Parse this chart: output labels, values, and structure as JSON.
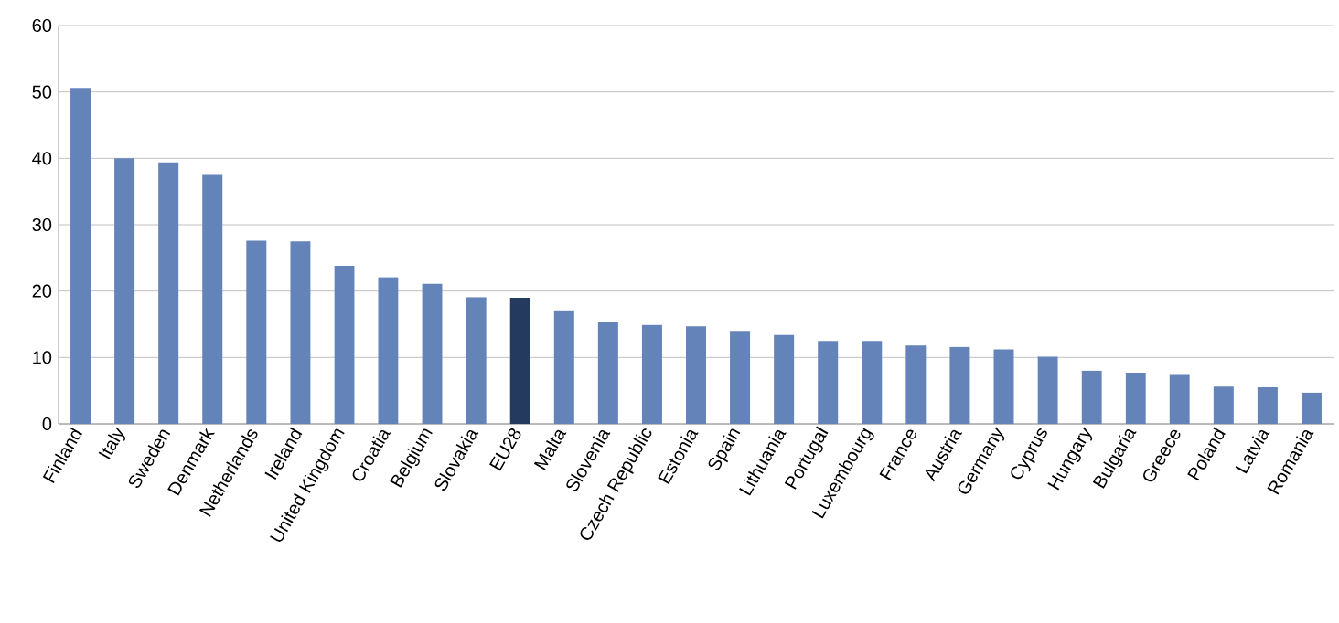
{
  "chart_data": {
    "type": "bar",
    "categories": [
      "Finland",
      "Italy",
      "Sweden",
      "Denmark",
      "Netherlands",
      "Ireland",
      "United Kingdom",
      "Croatia",
      "Belgium",
      "Slovakia",
      "EU28",
      "Malta",
      "Slovenia",
      "Czech Republic",
      "Estonia",
      "Spain",
      "Lithuania",
      "Portugal",
      "Luxembourg",
      "France",
      "Austria",
      "Germany",
      "Cyprus",
      "Hungary",
      "Bulgaria",
      "Greece",
      "Poland",
      "Latvia",
      "Romania"
    ],
    "values": [
      50.6,
      40.0,
      39.4,
      37.5,
      27.6,
      27.5,
      23.8,
      22.1,
      21.1,
      19.1,
      19.0,
      17.1,
      15.3,
      14.9,
      14.7,
      14.0,
      13.4,
      12.5,
      12.5,
      11.8,
      11.6,
      11.2,
      10.1,
      8.0,
      7.7,
      7.5,
      5.6,
      5.5,
      4.7
    ],
    "colors": [
      "#6383b9",
      "#6383b9",
      "#6383b9",
      "#6383b9",
      "#6383b9",
      "#6383b9",
      "#6383b9",
      "#6383b9",
      "#6383b9",
      "#6383b9",
      "#243a5e",
      "#6383b9",
      "#6383b9",
      "#6383b9",
      "#6383b9",
      "#6383b9",
      "#6383b9",
      "#6383b9",
      "#6383b9",
      "#6383b9",
      "#6383b9",
      "#6383b9",
      "#6383b9",
      "#6383b9",
      "#6383b9",
      "#6383b9",
      "#6383b9",
      "#6383b9",
      "#6383b9"
    ],
    "ylim": [
      0,
      60
    ],
    "yticks": [
      0,
      10,
      20,
      30,
      40,
      50,
      60
    ],
    "grid": "y"
  }
}
